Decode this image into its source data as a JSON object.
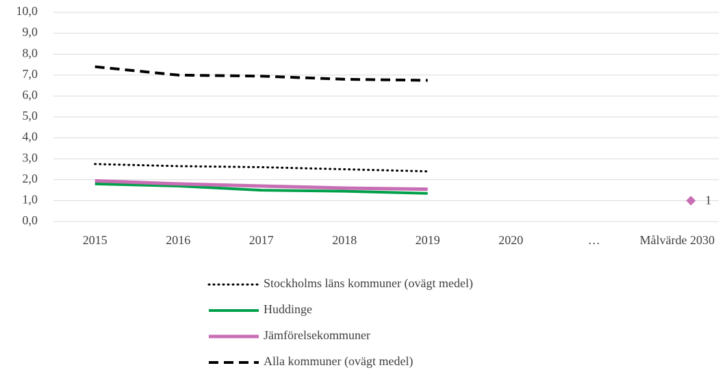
{
  "chart_data": {
    "type": "line",
    "categories": [
      "2015",
      "2016",
      "2017",
      "2018",
      "2019",
      "2020",
      "…",
      "Målvärde 2030"
    ],
    "ylim": [
      0,
      10
    ],
    "yticks": [
      {
        "value": 0,
        "label": "0,0"
      },
      {
        "value": 1,
        "label": "1,0"
      },
      {
        "value": 2,
        "label": "2,0"
      },
      {
        "value": 3,
        "label": "3,0"
      },
      {
        "value": 4,
        "label": "4,0"
      },
      {
        "value": 5,
        "label": "5,0"
      },
      {
        "value": 6,
        "label": "6,0"
      },
      {
        "value": 7,
        "label": "7,0"
      },
      {
        "value": 8,
        "label": "8,0"
      },
      {
        "value": 9,
        "label": "9,0"
      },
      {
        "value": 10,
        "label": "10,0"
      }
    ],
    "grid": true,
    "legend": "bottom",
    "series": [
      {
        "name": "Stockholms läns kommuner (ovägt medel)",
        "color": "#000000",
        "style": "dotted",
        "values": [
          2.75,
          2.65,
          2.6,
          2.5,
          2.4,
          null,
          null,
          null
        ]
      },
      {
        "name": "Huddinge",
        "color": "#00a04a",
        "style": "solid",
        "values": [
          1.8,
          1.7,
          1.5,
          1.45,
          1.35,
          null,
          null,
          null
        ]
      },
      {
        "name": "Jämförelsekommuner",
        "color": "#c86eb4",
        "style": "solid",
        "values": [
          1.95,
          1.8,
          1.7,
          1.6,
          1.55,
          null,
          null,
          null
        ]
      },
      {
        "name": "Alla kommuner (ovägt medel)",
        "color": "#000000",
        "style": "dashed",
        "values": [
          7.4,
          7.0,
          6.95,
          6.8,
          6.75,
          null,
          null,
          null
        ]
      }
    ],
    "target": {
      "color": "#c86eb4",
      "values": [
        null,
        null,
        null,
        null,
        null,
        null,
        null,
        1
      ]
    }
  }
}
